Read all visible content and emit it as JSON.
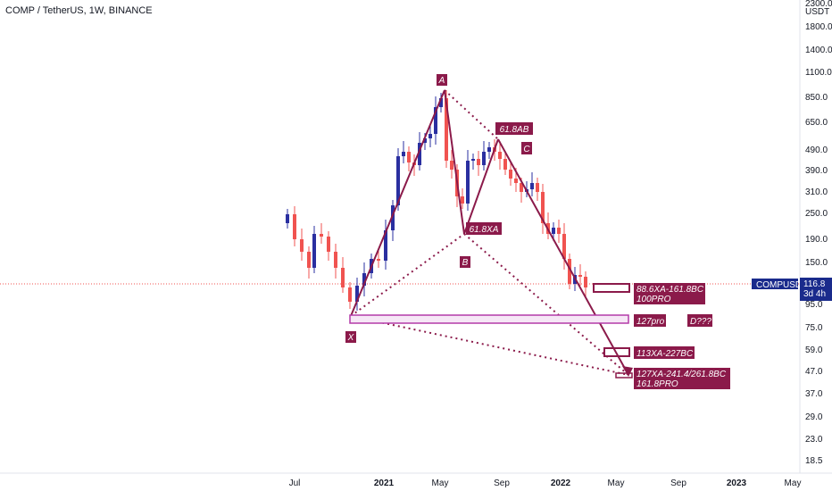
{
  "header": {
    "title": "COMP / TetherUS, 1W, BINANCE"
  },
  "price_axis": {
    "unit_line1": "2300.0",
    "unit_line2": "USDT",
    "ticks": [
      "1800.0",
      "1400.0",
      "1100.0",
      "850.0",
      "650.0",
      "490.0",
      "390.0",
      "310.0",
      "250.0",
      "190.0",
      "150.0",
      "95.0",
      "75.0",
      "59.0",
      "47.0",
      "37.0",
      "29.0",
      "23.0",
      "18.5"
    ],
    "current_label": "COMPUSDT",
    "current_price": "116.8",
    "countdown": "3d 4h"
  },
  "time_axis": {
    "ticks": [
      {
        "label": "Jul",
        "bold": false
      },
      {
        "label": "2021",
        "bold": true
      },
      {
        "label": "May",
        "bold": false
      },
      {
        "label": "Sep",
        "bold": false
      },
      {
        "label": "2022",
        "bold": true
      },
      {
        "label": "May",
        "bold": false
      },
      {
        "label": "Sep",
        "bold": false
      },
      {
        "label": "2023",
        "bold": true
      },
      {
        "label": "May",
        "bold": false
      }
    ]
  },
  "pattern_points": {
    "X": "X",
    "A": "A",
    "B": "B",
    "C": "C"
  },
  "annotations": {
    "ab_ratio": "61.8AB",
    "xa_ratio": "61.8XA",
    "box1_line1": "88.6XA-161.8BC",
    "box1_line2": "100PRO",
    "box2": "127pro",
    "d_question": "D???",
    "box3": "113XA-227BC",
    "box4_line1": "127XA-241.4/261.8BC",
    "box4_line2": "161.8PRO"
  },
  "colors": {
    "up": "#2a2fa0",
    "down": "#f05350",
    "pattern": "#8b1a4a",
    "axis_badge": "#1a2b8c"
  },
  "chart_data": {
    "type": "candlestick",
    "symbol": "COMP / TetherUS",
    "interval": "1W",
    "exchange": "BINANCE",
    "scale": "log",
    "ylim": [
      17,
      2400
    ],
    "last_price": 116.8,
    "pattern": {
      "X": 82,
      "A": 900,
      "B": 200,
      "C": 510,
      "D_targets": [
        46,
        57,
        84
      ]
    }
  }
}
